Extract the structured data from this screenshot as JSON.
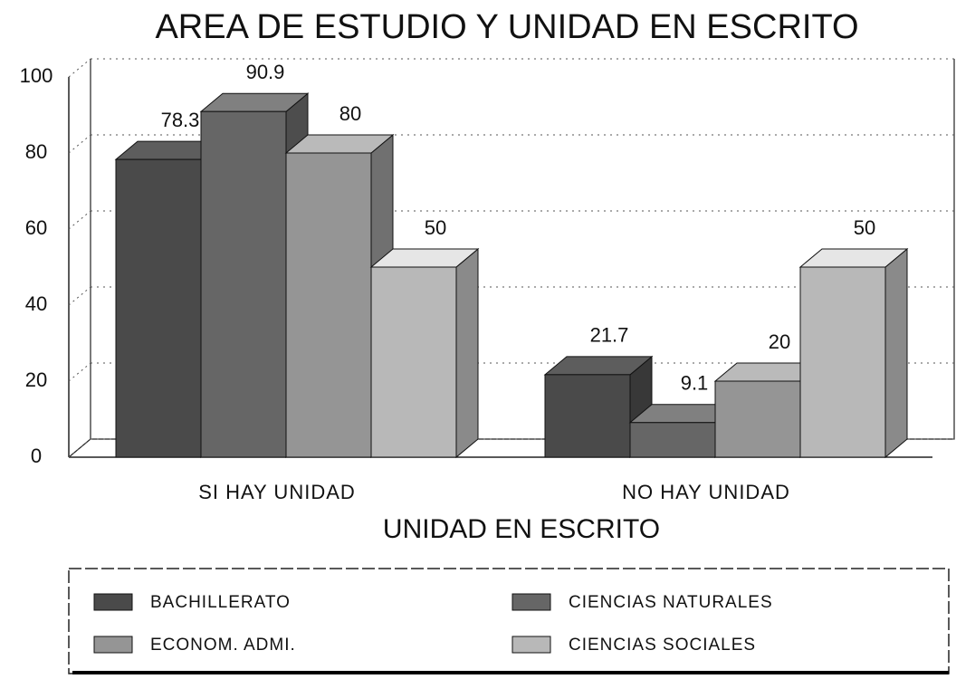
{
  "chart_data": {
    "type": "bar3d",
    "title": "AREA DE ESTUDIO Y UNIDAD EN ESCRITO",
    "x_label": "UNIDAD EN ESCRITO",
    "categories": [
      "SI HAY UNIDAD",
      "NO HAY UNIDAD"
    ],
    "series": [
      {
        "name": "BACHILLERATO",
        "color": "#4a4a4a",
        "values": [
          78.3,
          21.7
        ]
      },
      {
        "name": "CIENCIAS NATURALES",
        "color": "#666666",
        "values": [
          90.9,
          9.1
        ]
      },
      {
        "name": "ECONOM. ADMI.",
        "color": "#959595",
        "values": [
          80,
          20
        ]
      },
      {
        "name": "CIENCIAS SOCIALES",
        "color": "#b8b8b8",
        "values": [
          50,
          50
        ]
      }
    ],
    "ylim": [
      0,
      100
    ],
    "yticks": [
      0,
      20,
      40,
      60,
      80,
      100
    ],
    "grid": true,
    "legend": "bottom"
  }
}
